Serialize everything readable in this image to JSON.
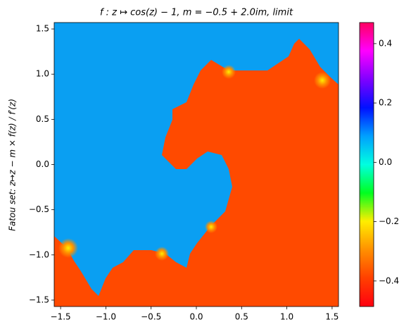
{
  "chart_data": {
    "type": "heatmap",
    "title": "f : z ↦ cos(z) − 1, m = −0.5 + 2.0im, limit",
    "y_label": "Fatou set: z↦z − m × f(z) / f′(z)",
    "xlim": [
      -1.5708,
      1.5708
    ],
    "ylim": [
      -1.5708,
      1.5708
    ],
    "xticks": [
      {
        "value": -1.5,
        "label": "−1.5"
      },
      {
        "value": -1.0,
        "label": "−1.0"
      },
      {
        "value": -0.5,
        "label": "−0.5"
      },
      {
        "value": 0,
        "label": "0.0"
      },
      0.5,
      {
        "value": 1.0,
        "label": "1.0"
      },
      1.5
    ],
    "yticks": [
      {
        "value": -1.5,
        "label": "−1.5"
      },
      {
        "value": -1.0,
        "label": "−1.0"
      },
      {
        "value": -0.5,
        "label": "−0.5"
      },
      {
        "value": 0,
        "label": "0.0"
      },
      0.5,
      {
        "value": 1.0,
        "label": "1.0"
      },
      1.5
    ],
    "colorbar_lim": [
      -0.486,
      0.471
    ],
    "colorbar_ticks": [
      {
        "value": -0.4,
        "label": "−0.4"
      },
      {
        "value": -0.2,
        "label": "−0.2"
      },
      {
        "value": 0,
        "label": "0.0"
      },
      0.2,
      0.4
    ],
    "colormap": [
      "#ff0010",
      "#ff4000",
      "#ff9000",
      "#ffee00",
      "#00ff20",
      "#00ffe0",
      "#00a0ff",
      "#0010ff",
      "#8000ff",
      "#ff00ff",
      "#ff0060"
    ]
  }
}
